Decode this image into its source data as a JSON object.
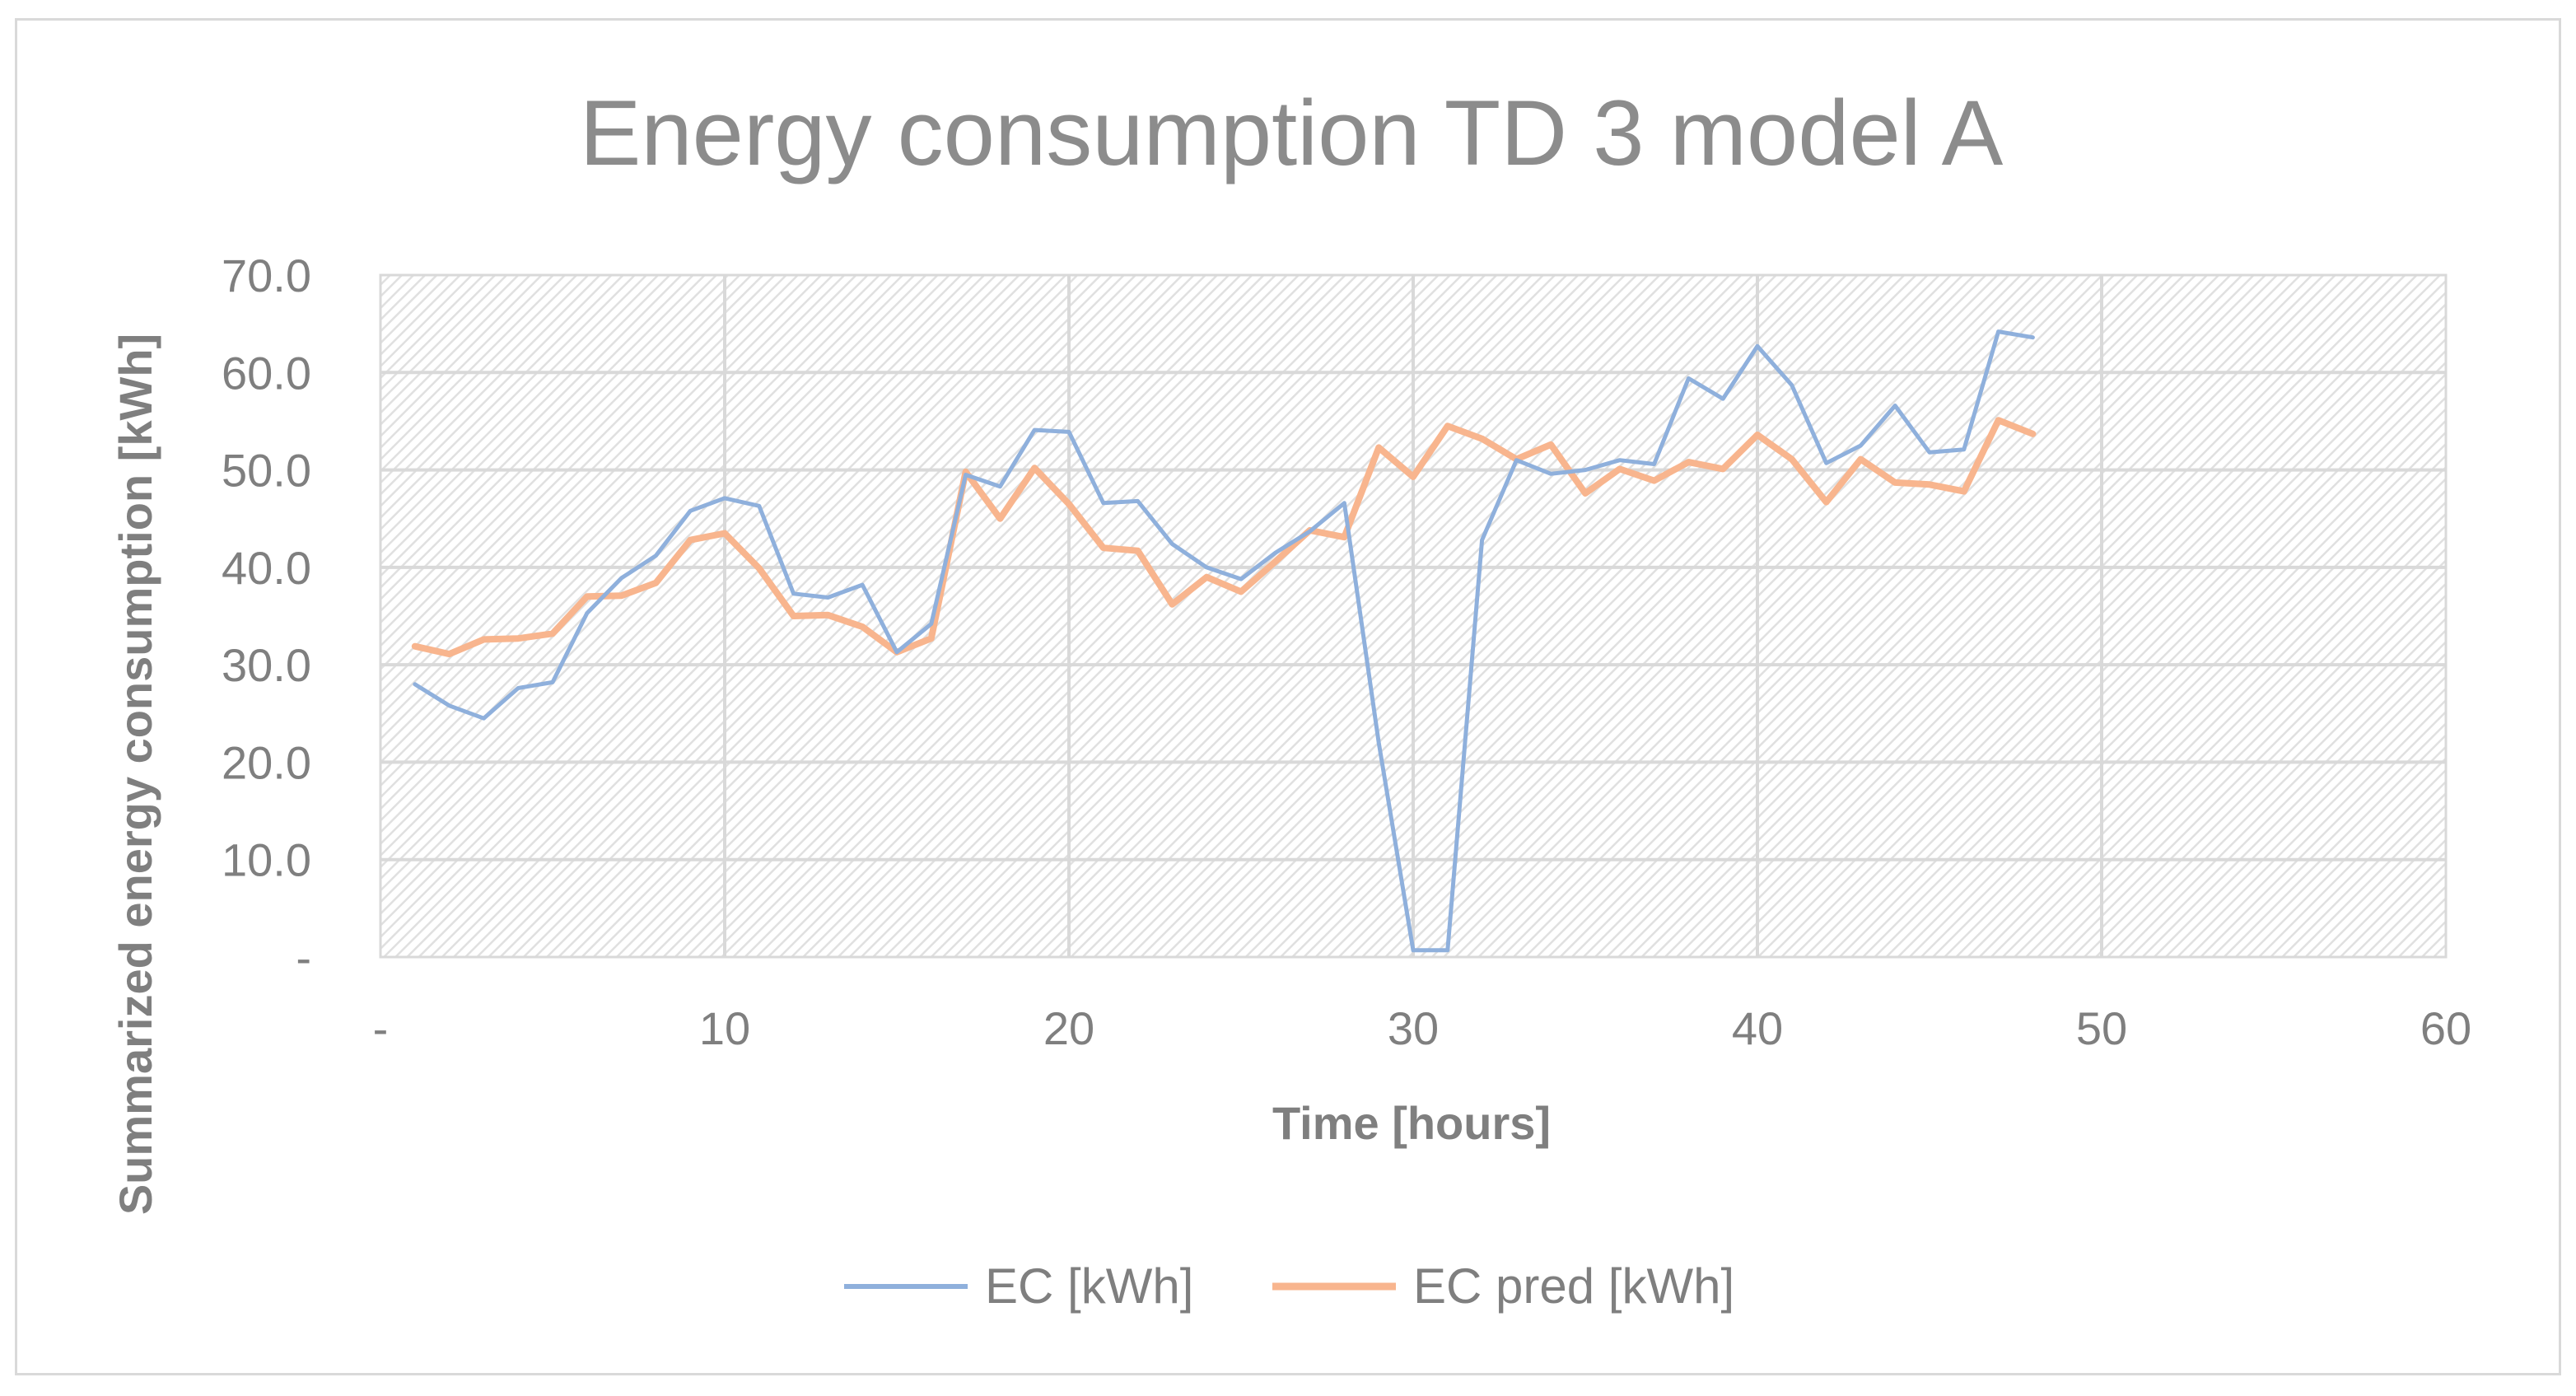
{
  "chart_data": {
    "type": "line",
    "title": "Energy consumption TD 3 model A",
    "xlabel": "Time [hours]",
    "ylabel": "Summarized energy consumption [kWh]",
    "xlim": [
      0,
      60
    ],
    "ylim": [
      0,
      70
    ],
    "x_ticks": [
      0,
      10,
      20,
      30,
      40,
      50,
      60
    ],
    "x_tick_labels": [
      "-",
      "10",
      "20",
      "30",
      "40",
      "50",
      "60"
    ],
    "y_ticks": [
      0,
      10,
      20,
      30,
      40,
      50,
      60,
      70
    ],
    "y_tick_labels": [
      "-",
      "10.0",
      "20.0",
      "30.0",
      "40.0",
      "50.0",
      "60.0",
      "70.0"
    ],
    "grid": true,
    "legend_position": "bottom",
    "x": [
      1,
      2,
      3,
      4,
      5,
      6,
      7,
      8,
      9,
      10,
      11,
      12,
      13,
      14,
      15,
      16,
      17,
      18,
      19,
      20,
      21,
      22,
      23,
      24,
      25,
      26,
      27,
      28,
      29,
      30,
      31,
      32,
      33,
      34,
      35,
      36,
      37,
      38,
      39,
      40,
      41,
      42,
      43,
      44,
      45,
      46,
      47,
      48
    ],
    "series": [
      {
        "name": "EC [kWh]",
        "color": "#8fb0dc",
        "values": [
          28.0,
          25.8,
          24.5,
          27.6,
          28.2,
          35.3,
          38.9,
          41.2,
          45.8,
          47.1,
          46.3,
          37.3,
          36.9,
          38.2,
          31.3,
          34.2,
          49.5,
          48.3,
          54.1,
          53.9,
          46.6,
          46.8,
          42.4,
          40.0,
          38.8,
          41.5,
          43.7,
          46.6,
          22.0,
          0.7,
          0.7,
          42.8,
          51.0,
          49.6,
          50.0,
          51.0,
          50.6,
          59.4,
          57.3,
          62.7,
          58.7,
          50.7,
          52.5,
          56.6,
          51.8,
          52.1,
          64.2,
          63.6
        ]
      },
      {
        "name": "EC pred [kWh]",
        "color": "#f8b58e",
        "values": [
          31.9,
          31.1,
          32.6,
          32.7,
          33.2,
          37.0,
          37.1,
          38.4,
          42.8,
          43.5,
          39.9,
          35.0,
          35.1,
          33.9,
          31.3,
          32.7,
          49.8,
          45.0,
          50.2,
          46.5,
          42.0,
          41.7,
          36.2,
          39.0,
          37.5,
          40.6,
          43.8,
          43.1,
          52.3,
          49.3,
          54.5,
          53.2,
          51.1,
          52.6,
          47.6,
          50.1,
          48.9,
          50.8,
          50.1,
          53.6,
          51.1,
          46.7,
          51.1,
          48.7,
          48.5,
          47.8,
          55.1,
          53.7
        ]
      }
    ]
  }
}
